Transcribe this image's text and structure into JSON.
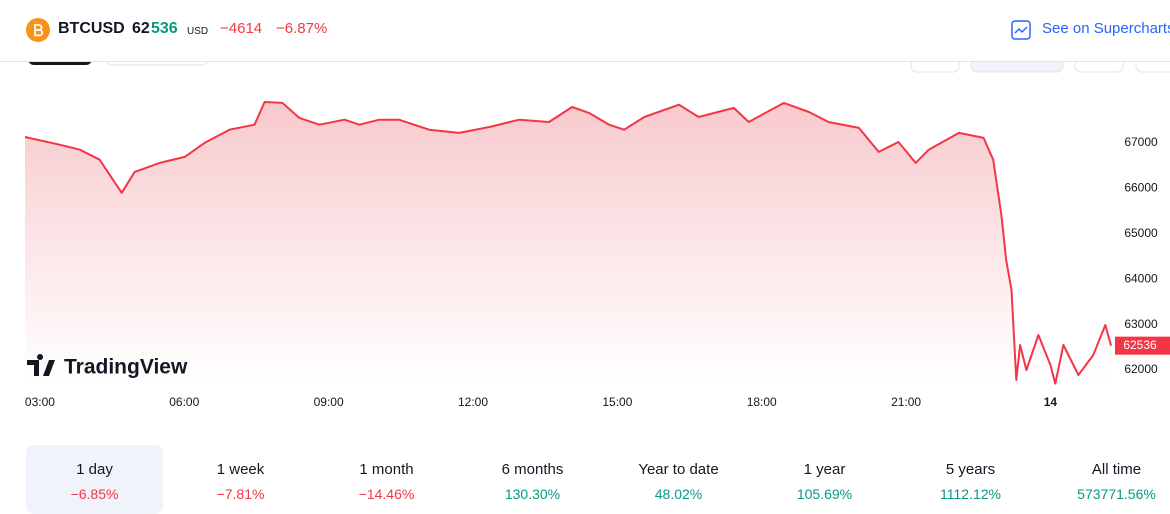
{
  "header": {
    "symbol": "BTCUSD",
    "price_main": "62",
    "price_changed_digits": "536",
    "currency": "USD",
    "change": "−4614",
    "change_percent": "−6.87%",
    "link": "See on Supercharts"
  },
  "chart_data": {
    "type": "line",
    "color": "#f23645",
    "watermark": "TradingView",
    "x": [
      2.69,
      3.41,
      3.83,
      4.24,
      4.7,
      4.97,
      5.49,
      6.01,
      6.42,
      6.94,
      7.46,
      7.67,
      8.04,
      8.39,
      8.81,
      9.33,
      9.64,
      10.05,
      10.46,
      11.09,
      11.71,
      12.34,
      12.96,
      13.58,
      14.06,
      14.41,
      14.83,
      15.14,
      15.56,
      16.28,
      16.69,
      17.42,
      17.73,
      18.46,
      18.98,
      19.39,
      20.02,
      20.43,
      20.84,
      21.2,
      21.47,
      22.1,
      22.61,
      22.81,
      22.98,
      23.08,
      23.19,
      23.29,
      23.37,
      23.5,
      23.75,
      24.0,
      24.1,
      24.27,
      24.58,
      24.89,
      25.14,
      25.26
    ],
    "values": [
      67130,
      66960,
      66850,
      66630,
      65900,
      66360,
      66560,
      66690,
      67000,
      67290,
      67400,
      67900,
      67880,
      67550,
      67400,
      67510,
      67400,
      67510,
      67510,
      67290,
      67220,
      67350,
      67510,
      67460,
      67790,
      67660,
      67400,
      67290,
      67570,
      67840,
      67570,
      67770,
      67460,
      67880,
      67680,
      67460,
      67330,
      66800,
      67020,
      66560,
      66850,
      67220,
      67110,
      66630,
      65410,
      64420,
      63760,
      61780,
      62550,
      62000,
      62770,
      62110,
      61700,
      62550,
      61890,
      62330,
      62990,
      62536
    ],
    "last_price": 62536,
    "xlim": [
      2.69,
      25.3
    ],
    "ylim": [
      61670,
      68780
    ],
    "xticks": [
      {
        "value": 3,
        "label": "03:00"
      },
      {
        "value": 6,
        "label": "06:00"
      },
      {
        "value": 9,
        "label": "09:00"
      },
      {
        "value": 12,
        "label": "12:00"
      },
      {
        "value": 15,
        "label": "15:00"
      },
      {
        "value": 18,
        "label": "18:00"
      },
      {
        "value": 21,
        "label": "21:00"
      },
      {
        "value": 24,
        "label": "14"
      }
    ],
    "yticks": [
      62000,
      63000,
      64000,
      65000,
      66000,
      67000
    ]
  },
  "periods": [
    {
      "label": "1 day",
      "change": "−6.85%",
      "color": "#f23645"
    },
    {
      "label": "1 week",
      "change": "−7.81%",
      "color": "#f23645"
    },
    {
      "label": "1 month",
      "change": "−14.46%",
      "color": "#f23645"
    },
    {
      "label": "6 months",
      "change": "130.30%",
      "color": "#089981"
    },
    {
      "label": "Year to date",
      "change": "48.02%",
      "color": "#089981"
    },
    {
      "label": "1 year",
      "change": "105.69%",
      "color": "#089981"
    },
    {
      "label": "5 years",
      "change": "1112.12%",
      "color": "#089981"
    },
    {
      "label": "All time",
      "change": "573771.56%",
      "color": "#089981"
    }
  ]
}
